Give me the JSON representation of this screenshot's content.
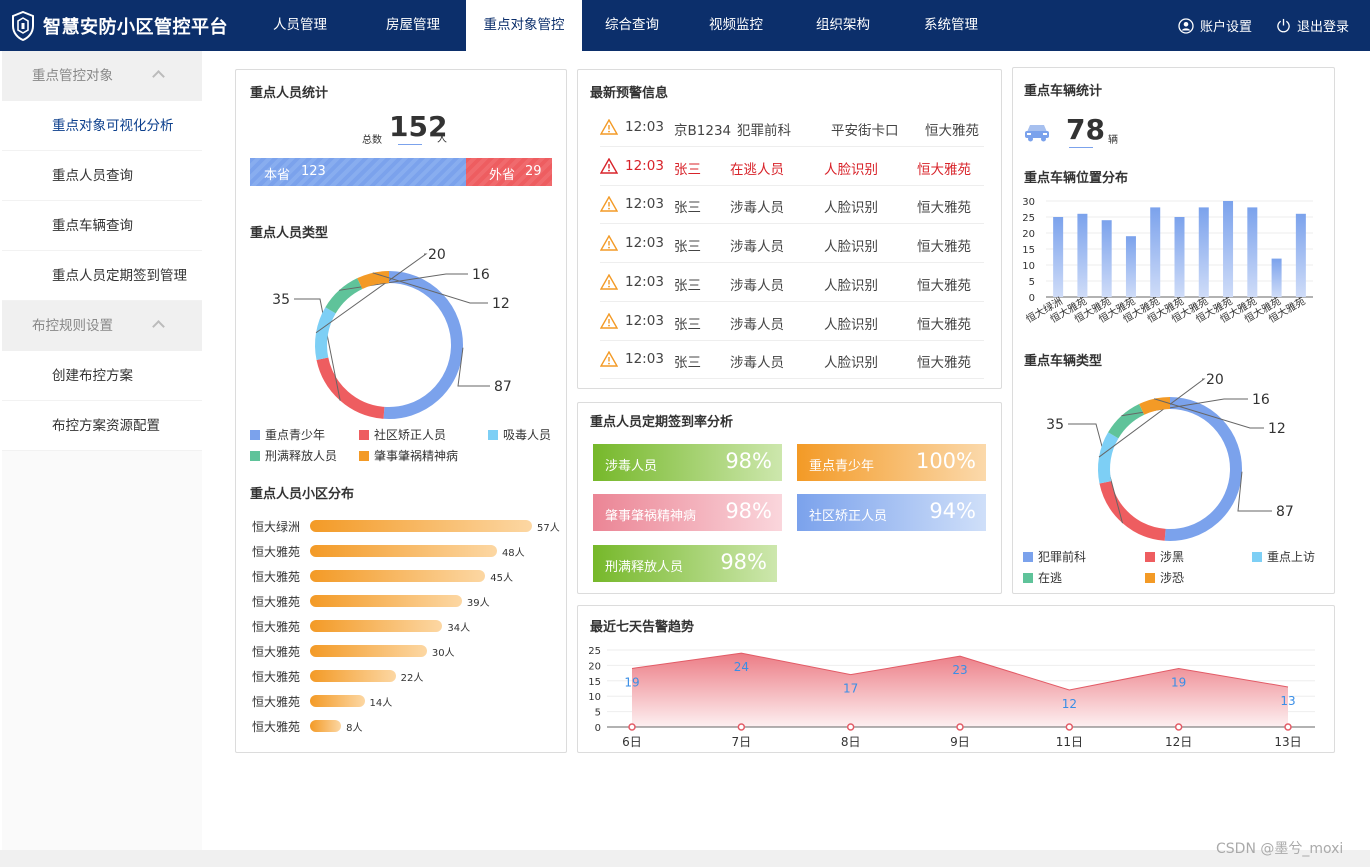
{
  "app": {
    "title": "智慧安防小区管控平台"
  },
  "nav": {
    "items": [
      "人员管理",
      "房屋管理",
      "重点对象管控",
      "综合查询",
      "视频监控",
      "组织架构",
      "系统管理"
    ],
    "active_index": 2
  },
  "topright": {
    "account": "账户设置",
    "logout": "退出登录"
  },
  "sidebar": {
    "groups": [
      {
        "label": "重点管控对象",
        "items": [
          "重点对象可视化分析",
          "重点人员查询",
          "重点车辆查询",
          "重点人员定期签到管理"
        ]
      },
      {
        "label": "布控规则设置",
        "items": [
          "创建布控方案",
          "布控方案资源配置"
        ]
      }
    ],
    "active_item": "重点对象可视化分析"
  },
  "person_stats": {
    "title": "重点人员统计",
    "total_label": "总数",
    "total": "152",
    "unit": "人",
    "local_label": "本省",
    "local": "123",
    "other_label": "外省",
    "other": "29"
  },
  "person_types": {
    "title": "重点人员类型",
    "items": [
      {
        "name": "重点青少年",
        "value": 87,
        "color": "#7ba2ec"
      },
      {
        "name": "社区矫正人员",
        "value": 35,
        "color": "#ee5d60"
      },
      {
        "name": "吸毒人员",
        "value": 20,
        "color": "#7dcff5"
      },
      {
        "name": "刑满释放人员",
        "value": 16,
        "color": "#5fc39a"
      },
      {
        "name": "肇事肇祸精神病",
        "value": 12,
        "color": "#f39a26"
      }
    ]
  },
  "community": {
    "title": "重点人员小区分布",
    "rows": [
      {
        "name": "恒大绿洲",
        "value": "57人",
        "count": 57
      },
      {
        "name": "恒大雅苑",
        "value": "48人",
        "count": 48
      },
      {
        "name": "恒大雅苑",
        "value": "45人",
        "count": 45
      },
      {
        "name": "恒大雅苑",
        "value": "39人",
        "count": 39
      },
      {
        "name": "恒大雅苑",
        "value": "34人",
        "count": 34
      },
      {
        "name": "恒大雅苑",
        "value": "30人",
        "count": 30
      },
      {
        "name": "恒大雅苑",
        "value": "22人",
        "count": 22
      },
      {
        "name": "恒大雅苑",
        "value": "14人",
        "count": 14
      },
      {
        "name": "恒大雅苑",
        "value": "8人",
        "count": 8
      }
    ]
  },
  "warnings": {
    "title": "最新预警信息",
    "rows": [
      {
        "time": "12:03",
        "who": "京B1234",
        "type": "犯罪前科",
        "src": "平安街卡口",
        "place": "恒大雅苑",
        "alert": false
      },
      {
        "time": "12:03",
        "who": "张三",
        "type": "在逃人员",
        "src": "人脸识别",
        "place": "恒大雅苑",
        "alert": true
      },
      {
        "time": "12:03",
        "who": "张三",
        "type": "涉毒人员",
        "src": "人脸识别",
        "place": "恒大雅苑",
        "alert": false
      },
      {
        "time": "12:03",
        "who": "张三",
        "type": "涉毒人员",
        "src": "人脸识别",
        "place": "恒大雅苑",
        "alert": false
      },
      {
        "time": "12:03",
        "who": "张三",
        "type": "涉毒人员",
        "src": "人脸识别",
        "place": "恒大雅苑",
        "alert": false
      },
      {
        "time": "12:03",
        "who": "张三",
        "type": "涉毒人员",
        "src": "人脸识别",
        "place": "恒大雅苑",
        "alert": false
      },
      {
        "time": "12:03",
        "who": "张三",
        "type": "涉毒人员",
        "src": "人脸识别",
        "place": "恒大雅苑",
        "alert": false
      }
    ]
  },
  "signin": {
    "title": "重点人员定期签到率分析",
    "items": [
      {
        "name": "涉毒人员",
        "value": "98%",
        "c1": "#76b82a",
        "c2": "#cde7ad"
      },
      {
        "name": "重点青少年",
        "value": "100%",
        "c1": "#f39a26",
        "c2": "#fbd9ab"
      },
      {
        "name": "肇事肇祸精神病",
        "value": "98%",
        "c1": "#eb8595",
        "c2": "#fad6dc"
      },
      {
        "name": "社区矫正人员",
        "value": "94%",
        "c1": "#7ba2ec",
        "c2": "#cfdff9"
      },
      {
        "name": "刑满释放人员",
        "value": "98%",
        "c1": "#76b82a",
        "c2": "#cde7ad"
      }
    ]
  },
  "vehicle_stats": {
    "title": "重点车辆统计",
    "total": "78",
    "unit": "辆"
  },
  "vehicle_location": {
    "title": "重点车辆位置分布"
  },
  "vehicle_types": {
    "title": "重点车辆类型",
    "items": [
      {
        "name": "犯罪前科",
        "value": 87,
        "color": "#7ba2ec"
      },
      {
        "name": "涉黑",
        "value": 35,
        "color": "#ee5d60"
      },
      {
        "name": "重点上访",
        "value": 20,
        "color": "#7dcff5"
      },
      {
        "name": "在逃",
        "value": 16,
        "color": "#5fc39a"
      },
      {
        "name": "涉恐",
        "value": 12,
        "color": "#f39a26"
      }
    ]
  },
  "trend": {
    "title": "最近七天告警趋势"
  },
  "watermark": "CSDN @墨兮_moxi",
  "chart_data": [
    {
      "type": "bar",
      "title": "重点车辆位置分布",
      "categories": [
        "恒大绿洲",
        "恒大雅苑",
        "恒大雅苑",
        "恒大雅苑",
        "恒大雅苑",
        "恒大雅苑",
        "恒大雅苑",
        "恒大雅苑",
        "恒大雅苑",
        "恒大雅苑",
        "恒大雅苑"
      ],
      "values": [
        25,
        26,
        24,
        19,
        28,
        25,
        28,
        30,
        28,
        12,
        26
      ],
      "ylim": [
        0,
        30
      ],
      "yticks": [
        "0",
        "5",
        "10",
        "15",
        "20",
        "25",
        "30"
      ]
    },
    {
      "type": "area",
      "title": "最近七天告警趋势",
      "categories": [
        "6日",
        "7日",
        "8日",
        "9日",
        "11日",
        "12日",
        "13日"
      ],
      "values": [
        19,
        24,
        17,
        23,
        12,
        19,
        13
      ],
      "ylim": [
        0,
        25
      ],
      "yticks": [
        "0",
        "5",
        "10",
        "15",
        "20",
        "25"
      ]
    }
  ]
}
